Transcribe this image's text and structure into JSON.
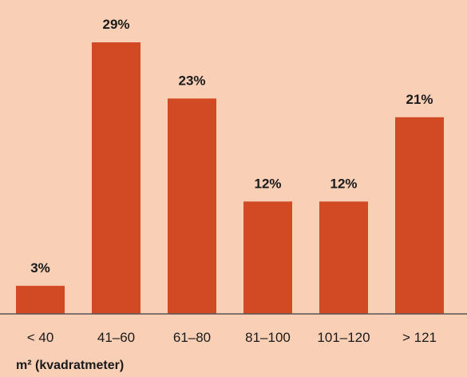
{
  "chart_data": {
    "type": "bar",
    "categories": [
      "< 40",
      "41–60",
      "61–80",
      "81–100",
      "101–120",
      "> 121"
    ],
    "values": [
      3,
      29,
      23,
      12,
      12,
      21
    ],
    "value_labels": [
      "3%",
      "29%",
      "23%",
      "12%",
      "12%",
      "21%"
    ],
    "xlabel": "m² (kvadratmeter)",
    "ylabel": "",
    "ylim": [
      0,
      30
    ],
    "grid": false,
    "legend": "none",
    "bar_color": "#d24a24",
    "background_color": "#f9cfb6",
    "axis_color": "#555555"
  }
}
